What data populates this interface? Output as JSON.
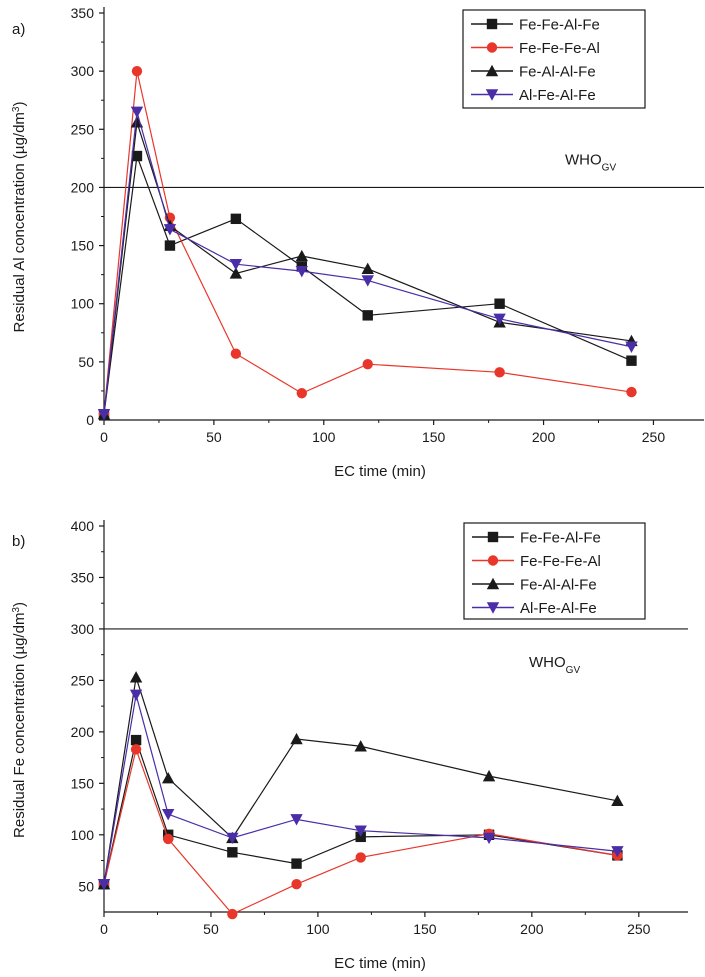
{
  "chart_data": [
    {
      "panel_label": "a)",
      "type": "line",
      "xlabel": "EC time (min)",
      "ylabel": "Residual Al concentration (µg/dm³)",
      "ylabel_parts": {
        "main": "Residual Al concentration (µg/dm",
        "sup": "3",
        "close": ")"
      },
      "xlim": [
        0,
        273
      ],
      "ylim": [
        0,
        350
      ],
      "x_ticks": [
        0,
        50,
        100,
        150,
        200,
        250
      ],
      "y_ticks": [
        0,
        50,
        100,
        150,
        200,
        250,
        300,
        350
      ],
      "guideline": {
        "value": 200,
        "label_main": "WHO",
        "label_sub": "GV"
      },
      "legend_position": "top-right",
      "series": [
        {
          "name": "Fe-Fe-Al-Fe",
          "marker": "square",
          "color": "#1a1a1a",
          "x": [
            0,
            15,
            30,
            60,
            90,
            120,
            180,
            240
          ],
          "y": [
            5,
            227,
            150,
            173,
            132,
            90,
            100,
            51
          ]
        },
        {
          "name": "Fe-Fe-Fe-Al",
          "marker": "circle",
          "color": "#e8372a",
          "x": [
            0,
            15,
            30,
            60,
            90,
            120,
            180,
            240
          ],
          "y": [
            5,
            300,
            174,
            57,
            23,
            48,
            41,
            24
          ]
        },
        {
          "name": "Fe-Al-Al-Fe",
          "marker": "triangle-up",
          "color": "#1a1a1a",
          "x": [
            0,
            15,
            30,
            60,
            90,
            120,
            180,
            240
          ],
          "y": [
            5,
            256,
            167,
            126,
            141,
            130,
            84,
            68
          ]
        },
        {
          "name": "Al-Fe-Al-Fe",
          "marker": "triangle-down",
          "color": "#4a2ea8",
          "x": [
            0,
            15,
            30,
            60,
            90,
            120,
            180,
            240
          ],
          "y": [
            5,
            265,
            164,
            134,
            128,
            120,
            87,
            63
          ]
        }
      ]
    },
    {
      "panel_label": "b)",
      "type": "line",
      "xlabel": "EC time (min)",
      "ylabel": "Residual Fe concentration (µg/dm³)",
      "ylabel_parts": {
        "main": "Residual Fe concentration (µg/dm",
        "sup": "3",
        "close": ")"
      },
      "xlim": [
        0,
        273
      ],
      "ylim": [
        25,
        400
      ],
      "x_ticks": [
        0,
        50,
        100,
        150,
        200,
        250
      ],
      "y_ticks": [
        50,
        100,
        150,
        200,
        250,
        300,
        350,
        400
      ],
      "guideline": {
        "value": 300,
        "label_main": "WHO",
        "label_sub": "GV"
      },
      "legend_position": "top-right",
      "series": [
        {
          "name": "Fe-Fe-Al-Fe",
          "marker": "square",
          "color": "#1a1a1a",
          "x": [
            0,
            15,
            30,
            60,
            90,
            120,
            180,
            240
          ],
          "y": [
            52,
            192,
            100,
            83,
            72,
            98,
            100,
            80
          ]
        },
        {
          "name": "Fe-Fe-Fe-Al",
          "marker": "circle",
          "color": "#e8372a",
          "x": [
            0,
            15,
            30,
            60,
            90,
            120,
            180,
            240
          ],
          "y": [
            52,
            183,
            96,
            23,
            52,
            78,
            101,
            80
          ]
        },
        {
          "name": "Fe-Al-Al-Fe",
          "marker": "triangle-up",
          "color": "#1a1a1a",
          "x": [
            0,
            15,
            30,
            60,
            90,
            120,
            180,
            240
          ],
          "y": [
            52,
            253,
            155,
            97,
            193,
            186,
            157,
            133
          ]
        },
        {
          "name": "Al-Fe-Al-Fe",
          "marker": "triangle-down",
          "color": "#4a2ea8",
          "x": [
            0,
            15,
            30,
            60,
            90,
            120,
            180,
            240
          ],
          "y": [
            52,
            236,
            120,
            97,
            115,
            104,
            97,
            84
          ]
        }
      ]
    }
  ]
}
